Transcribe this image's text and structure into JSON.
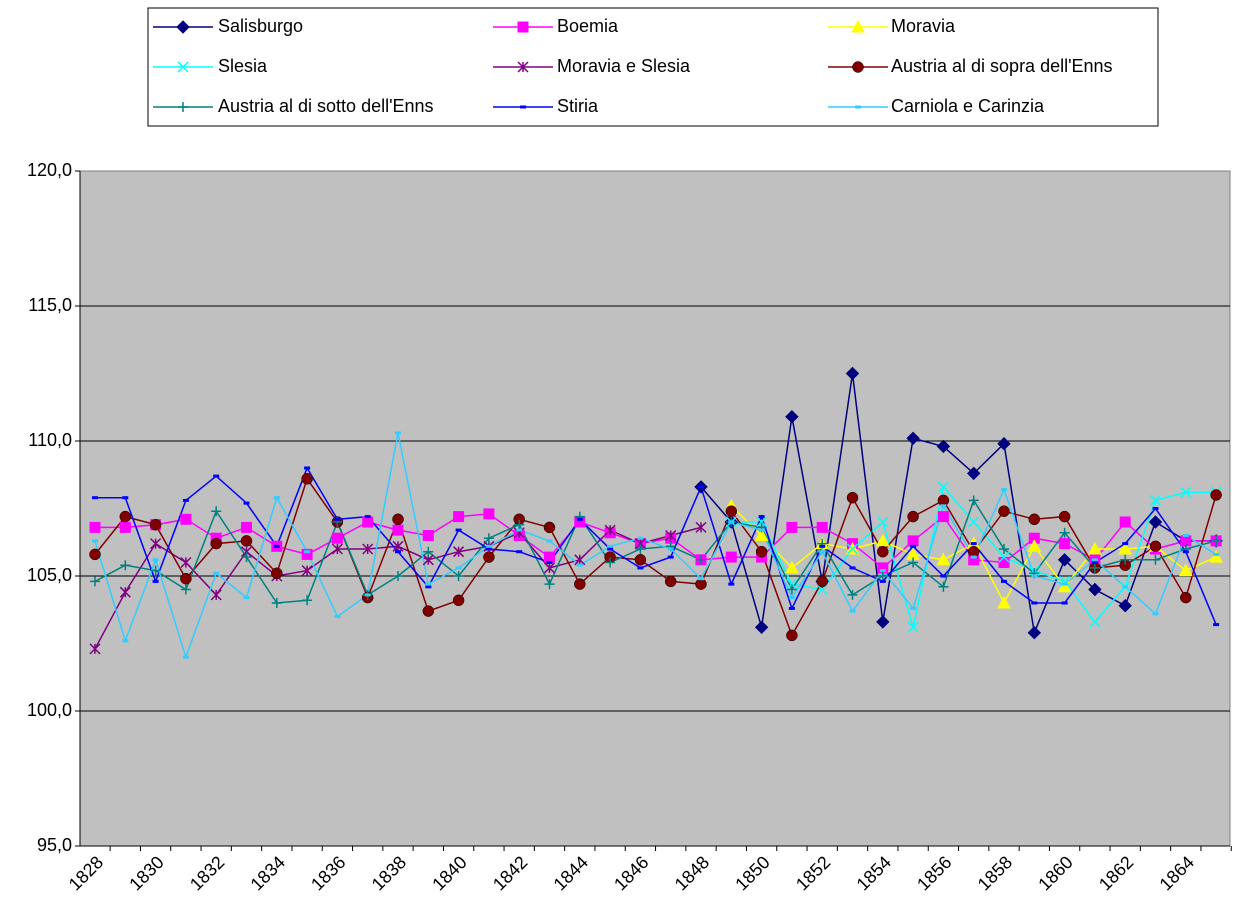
{
  "chart_data": {
    "type": "line",
    "categories": [
      "1828",
      null,
      "1830",
      null,
      "1832",
      null,
      "1834",
      null,
      "1836",
      null,
      "1838",
      null,
      "1840",
      null,
      "1842",
      null,
      "1844",
      null,
      "1846",
      null,
      "1848",
      null,
      "1850",
      null,
      "1852",
      null,
      "1854",
      null,
      "1856",
      null,
      "1858",
      null,
      "1860",
      null,
      "1862",
      null,
      "1864",
      null
    ],
    "ylim": [
      95,
      120
    ],
    "yticks": [
      {
        "value": 95,
        "label": "95,0"
      },
      {
        "value": 100,
        "label": "100,0"
      },
      {
        "value": 105,
        "label": "105,0"
      },
      {
        "value": 110,
        "label": "110,0"
      },
      {
        "value": 115,
        "label": "115,0"
      },
      {
        "value": 120,
        "label": "120,0"
      }
    ],
    "grid": true,
    "legend": "top",
    "series": [
      {
        "name": "Salisburgo",
        "color": "#000080",
        "marker": "diamond",
        "values": [
          null,
          null,
          null,
          null,
          null,
          null,
          null,
          null,
          null,
          null,
          null,
          null,
          null,
          null,
          null,
          null,
          null,
          null,
          null,
          null,
          108.3,
          107.0,
          103.1,
          110.9,
          104.8,
          112.5,
          103.3,
          110.1,
          109.8,
          108.8,
          109.9,
          102.9,
          105.6,
          104.5,
          103.9,
          107.0,
          106.3,
          106.3
        ]
      },
      {
        "name": "Boemia",
        "color": "#ff00ff",
        "marker": "square",
        "values": [
          106.8,
          106.8,
          106.9,
          107.1,
          106.4,
          106.8,
          106.1,
          105.8,
          106.4,
          107.0,
          106.7,
          106.5,
          107.2,
          107.3,
          106.5,
          105.7,
          107.0,
          106.6,
          106.2,
          106.4,
          105.6,
          105.7,
          105.7,
          106.8,
          106.8,
          106.2,
          105.3,
          106.3,
          107.2,
          105.6,
          105.5,
          106.4,
          106.2,
          105.6,
          107.0,
          106.0,
          106.3,
          106.3
        ]
      },
      {
        "name": "Moravia",
        "color": "#ffff00",
        "marker": "triangle",
        "values": [
          null,
          null,
          null,
          null,
          null,
          null,
          null,
          null,
          null,
          null,
          null,
          null,
          null,
          null,
          null,
          null,
          null,
          null,
          null,
          null,
          null,
          107.6,
          106.5,
          105.3,
          106.2,
          106.0,
          106.3,
          105.8,
          105.6,
          106.2,
          104.0,
          106.1,
          104.6,
          106.0,
          106.0,
          106.1,
          105.2,
          105.7
        ]
      },
      {
        "name": "Slesia",
        "color": "#00ffff",
        "marker": "x",
        "values": [
          null,
          null,
          null,
          null,
          null,
          null,
          null,
          null,
          null,
          null,
          null,
          null,
          null,
          null,
          null,
          null,
          null,
          null,
          null,
          null,
          null,
          107.0,
          107.0,
          104.7,
          104.5,
          106.0,
          107.0,
          103.1,
          108.3,
          107.0,
          105.7,
          105.2,
          104.8,
          103.3,
          104.6,
          107.8,
          108.1,
          108.1
        ]
      },
      {
        "name": "Moravia e Slesia",
        "color": "#800080",
        "marker": "asterisk",
        "values": [
          102.3,
          104.4,
          106.2,
          105.5,
          104.3,
          105.9,
          105.0,
          105.2,
          106.0,
          106.0,
          106.1,
          105.6,
          105.9,
          106.1,
          106.6,
          105.3,
          105.6,
          106.7,
          106.2,
          106.5,
          106.8,
          null,
          null,
          null,
          null,
          null,
          null,
          null,
          null,
          null,
          null,
          null,
          null,
          null,
          null,
          null,
          null,
          null
        ]
      },
      {
        "name": "Austria al di sopra dell'Enns",
        "color": "#800000",
        "marker": "circle",
        "values": [
          105.8,
          107.2,
          106.9,
          104.9,
          106.2,
          106.3,
          105.1,
          108.6,
          107.0,
          104.2,
          107.1,
          103.7,
          104.1,
          105.7,
          107.1,
          106.8,
          104.7,
          105.7,
          105.6,
          104.8,
          104.7,
          107.4,
          105.9,
          102.8,
          104.8,
          107.9,
          105.9,
          107.2,
          107.8,
          105.9,
          107.4,
          107.1,
          107.2,
          105.3,
          105.4,
          106.1,
          104.2,
          108.0
        ]
      },
      {
        "name": "Austria al di sotto dell'Enns",
        "color": "#008080",
        "marker": "plus",
        "values": [
          104.8,
          105.4,
          105.2,
          104.5,
          107.4,
          105.7,
          104.0,
          104.1,
          107.0,
          104.3,
          105.0,
          105.9,
          105.0,
          106.4,
          106.9,
          104.7,
          107.2,
          105.5,
          106.0,
          106.1,
          105.6,
          107.0,
          106.8,
          104.5,
          106.2,
          104.3,
          105.0,
          105.5,
          104.6,
          107.8,
          106.0,
          105.1,
          106.6,
          105.3,
          105.6,
          105.6,
          106.0,
          106.3
        ]
      },
      {
        "name": "Stiria",
        "color": "#0000ff",
        "marker": "dash",
        "values": [
          107.9,
          107.9,
          104.8,
          107.8,
          108.7,
          107.7,
          106.1,
          109.0,
          107.1,
          107.2,
          105.9,
          104.6,
          106.7,
          106.0,
          105.9,
          105.5,
          107.1,
          106.0,
          105.3,
          105.7,
          108.3,
          104.7,
          107.2,
          103.8,
          106.1,
          105.3,
          104.8,
          106.1,
          105.0,
          106.2,
          104.8,
          104.0,
          104.0,
          105.5,
          106.2,
          107.5,
          105.9,
          103.2
        ]
      },
      {
        "name": "Carniola e Carinzia",
        "color": "#33ccff",
        "marker": "dash",
        "values": [
          106.3,
          102.6,
          105.6,
          102.0,
          105.1,
          104.2,
          107.9,
          105.9,
          103.5,
          104.3,
          110.3,
          104.7,
          105.3,
          106.1,
          106.7,
          106.3,
          105.4,
          106.1,
          106.4,
          106.0,
          104.9,
          107.0,
          106.7,
          104.2,
          105.9,
          103.7,
          105.2,
          103.8,
          107.6,
          105.7,
          108.2,
          105.0,
          104.7,
          105.6,
          104.6,
          103.6,
          106.5,
          105.8
        ]
      }
    ]
  }
}
